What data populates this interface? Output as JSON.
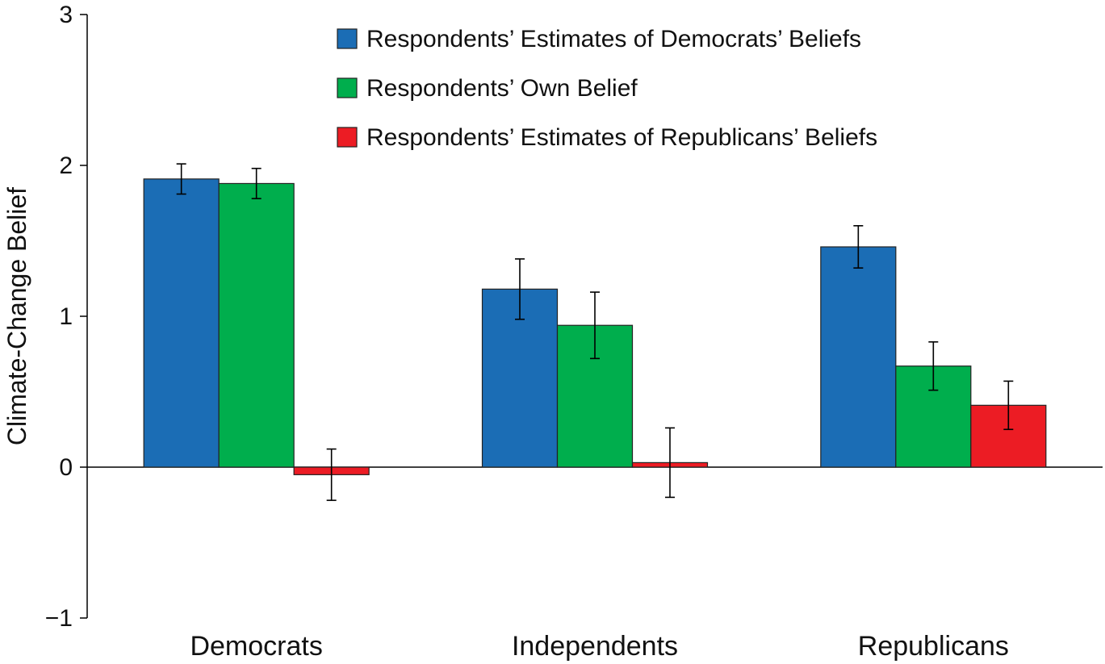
{
  "chart_data": {
    "type": "bar",
    "title": "",
    "xlabel": "",
    "ylabel": "Climate-Change Belief",
    "ylim": [
      -1,
      3
    ],
    "yticks": [
      3,
      2,
      1,
      0,
      -1
    ],
    "ytick_labels": [
      "3",
      "2",
      "1",
      "0",
      "−1"
    ],
    "categories": [
      "Democrats",
      "Independents",
      "Republicans"
    ],
    "legend_position": "top-center",
    "grid": false,
    "error_bars": true,
    "series": [
      {
        "name": "Respondents’ Estimates of Democrats’ Beliefs",
        "color": "#1b6db5",
        "values": [
          1.91,
          1.18,
          1.46
        ],
        "errors": [
          0.1,
          0.2,
          0.14
        ]
      },
      {
        "name": "Respondents’ Own Belief",
        "color": "#00ae4d",
        "values": [
          1.88,
          0.94,
          0.67
        ],
        "errors": [
          0.1,
          0.22,
          0.16
        ]
      },
      {
        "name": "Respondents’ Estimates of Republicans’ Beliefs",
        "color": "#ec1c24",
        "values": [
          -0.05,
          0.03,
          0.41
        ],
        "errors": [
          0.17,
          0.23,
          0.16
        ]
      }
    ]
  }
}
